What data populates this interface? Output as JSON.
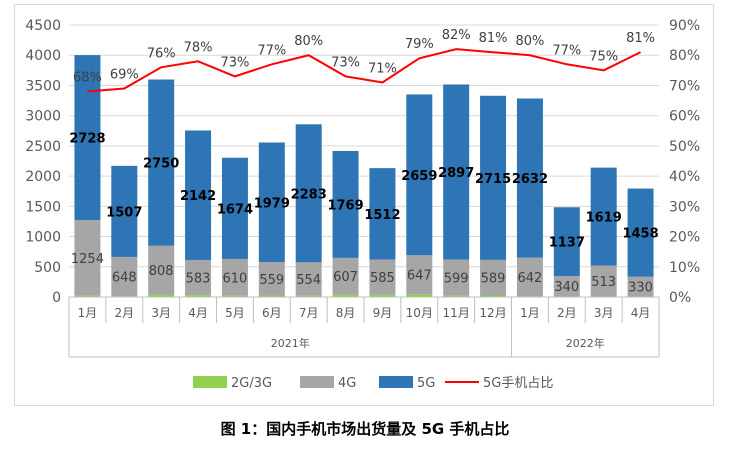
{
  "caption": "图 1：国内手机市场出货量及 5G 手机占比",
  "colors": {
    "g23": "#92d050",
    "g4": "#a6a6a6",
    "g5": "#2e75b6",
    "ratio": "#ff0000"
  },
  "chart_data": {
    "type": "bar",
    "stacked": true,
    "categories": [
      "1月",
      "2月",
      "3月",
      "4月",
      "5月",
      "6月",
      "7月",
      "8月",
      "9月",
      "10月",
      "11月",
      "12月",
      "1月",
      "2月",
      "3月",
      "4月"
    ],
    "year_groups": [
      {
        "label": "2021年",
        "start": 0,
        "count": 12
      },
      {
        "label": "2022年",
        "start": 12,
        "count": 4
      }
    ],
    "series": [
      {
        "name": "2G/3G",
        "values": [
          20,
          15,
          40,
          30,
          20,
          18,
          20,
          40,
          35,
          45,
          20,
          25,
          10,
          8,
          8,
          6
        ]
      },
      {
        "name": "4G",
        "values": [
          1254,
          648,
          808,
          583,
          610,
          559,
          554,
          607,
          585,
          647,
          599,
          589,
          642,
          340,
          513,
          330
        ]
      },
      {
        "name": "5G",
        "values": [
          2728,
          1507,
          2750,
          2142,
          1674,
          1979,
          2283,
          1769,
          1512,
          2659,
          2897,
          2715,
          2632,
          1137,
          1619,
          1458
        ]
      }
    ],
    "label_4g": [
      "1254",
      "648",
      "808",
      "583",
      "610",
      "559",
      "554",
      "607",
      "585",
      "647",
      "599",
      "589",
      "642",
      "340",
      "513",
      "330"
    ],
    "label_5g": [
      "2728",
      "1507",
      "2750",
      "2142",
      "1674",
      "1979",
      "2283",
      "1769",
      "1512",
      "2659",
      "2897",
      "2715",
      "2632",
      "1137",
      "1619",
      "1458"
    ],
    "line": {
      "name": "5G手机占比",
      "values": [
        68,
        69,
        76,
        78,
        73,
        77,
        80,
        73,
        71,
        79,
        82,
        81,
        80,
        77,
        75,
        81
      ]
    },
    "line_labels": [
      "68%",
      "69%",
      "76%",
      "78%",
      "73%",
      "77%",
      "80%",
      "73%",
      "71%",
      "79%",
      "82%",
      "81%",
      "80%",
      "77%",
      "75%",
      "81%"
    ],
    "ylim": [
      0,
      4500
    ],
    "y_ticks": [
      "0",
      "500",
      "1000",
      "1500",
      "2000",
      "2500",
      "3000",
      "3500",
      "4000",
      "4500"
    ],
    "y2lim": [
      0,
      90
    ],
    "y2_ticks": [
      "0%",
      "10%",
      "20%",
      "30%",
      "40%",
      "50%",
      "60%",
      "70%",
      "80%",
      "90%"
    ],
    "legend_position": "bottom"
  }
}
